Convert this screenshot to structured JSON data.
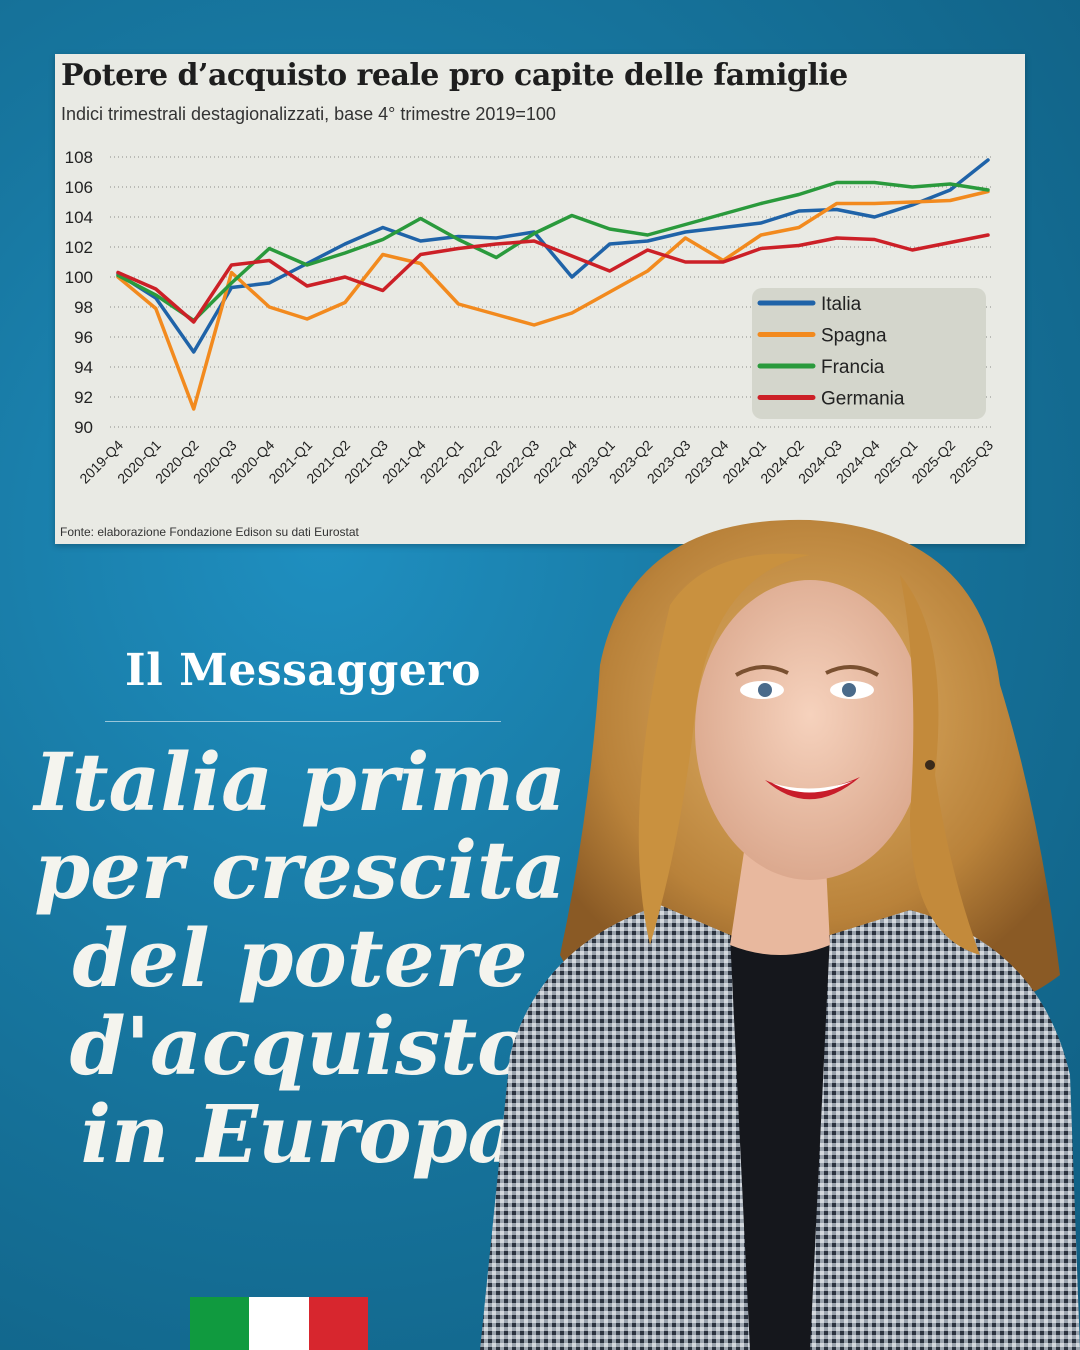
{
  "chart_data": {
    "type": "line",
    "title": "Potere d’acquisto reale pro capite delle famiglie",
    "subtitle": "Indici trimestrali destagionalizzati, base 4° trimestre 2019=100",
    "source": "Fonte: elaborazione Fondazione Edison su dati Eurostat",
    "x": [
      "2019-Q4",
      "2020-Q1",
      "2020-Q2",
      "2020-Q3",
      "2020-Q4",
      "2021-Q1",
      "2021-Q2",
      "2021-Q3",
      "2021-Q4",
      "2022-Q1",
      "2022-Q2",
      "2022-Q3",
      "2022-Q4",
      "2023-Q1",
      "2023-Q2",
      "2023-Q3",
      "2023-Q4",
      "2024-Q1",
      "2024-Q2",
      "2024-Q3",
      "2024-Q4",
      "2025-Q1",
      "2025-Q2",
      "2025-Q3"
    ],
    "yticks": [
      90,
      92,
      94,
      96,
      98,
      100,
      102,
      104,
      106,
      108
    ],
    "ylim": [
      90,
      108
    ],
    "grid": "horizontal-dotted",
    "legend_position": "right",
    "series": [
      {
        "name": "Italia",
        "color": "#1f63a8",
        "values": [
          100.2,
          98.6,
          95.0,
          99.3,
          99.6,
          100.9,
          102.2,
          103.3,
          102.4,
          102.7,
          102.6,
          103.0,
          100.0,
          102.2,
          102.4,
          103.0,
          103.3,
          103.6,
          104.4,
          104.5,
          104.0,
          104.8,
          105.8,
          107.8
        ]
      },
      {
        "name": "Spagna",
        "color": "#f28a1e",
        "values": [
          100.0,
          97.9,
          91.2,
          100.3,
          98.0,
          97.2,
          98.3,
          101.5,
          100.9,
          98.2,
          97.5,
          96.8,
          97.6,
          99.0,
          100.4,
          102.6,
          101.1,
          102.8,
          103.3,
          104.9,
          104.9,
          105.0,
          105.1,
          105.7
        ]
      },
      {
        "name": "Francia",
        "color": "#2a9a3c",
        "values": [
          100.1,
          98.8,
          97.1,
          99.6,
          101.9,
          100.8,
          101.6,
          102.5,
          103.9,
          102.5,
          101.3,
          102.9,
          104.1,
          103.2,
          102.8,
          103.5,
          104.2,
          104.9,
          105.5,
          106.3,
          106.3,
          106.0,
          106.2,
          105.8
        ]
      },
      {
        "name": "Germania",
        "color": "#cc2027",
        "values": [
          100.3,
          99.2,
          97.0,
          100.8,
          101.1,
          99.4,
          100.0,
          99.1,
          101.5,
          101.9,
          102.2,
          102.4,
          101.4,
          100.4,
          101.8,
          101.0,
          101.0,
          101.9,
          102.1,
          102.6,
          102.5,
          101.8,
          102.3,
          102.8
        ]
      }
    ]
  },
  "page": {
    "masthead": "Il Messaggero",
    "headline": [
      "Italia prima",
      "per crescita",
      "del potere",
      "d'acquisto",
      "in Europa"
    ]
  },
  "flag": {
    "colors": [
      "#109a3f",
      "#ffffff",
      "#d7262e"
    ]
  }
}
